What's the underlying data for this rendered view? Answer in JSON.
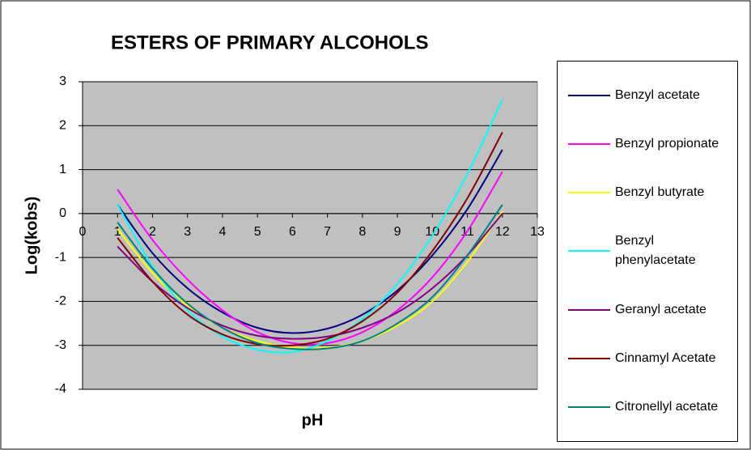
{
  "chart_data": {
    "type": "line",
    "title": "ESTERS OF PRIMARY ALCOHOLS",
    "x_label": "pH",
    "y_label": "Log(kobs)",
    "x": [
      1,
      2,
      3,
      4,
      5,
      6,
      7,
      8,
      9,
      10,
      11,
      12
    ],
    "xlim": [
      0,
      13
    ],
    "xticks": [
      0,
      1,
      2,
      3,
      4,
      5,
      6,
      7,
      8,
      9,
      10,
      11,
      12,
      13
    ],
    "ylim": [
      -4,
      3
    ],
    "yticks": [
      -4,
      -3,
      -2,
      -1,
      0,
      1,
      2,
      3
    ],
    "grid": true,
    "legend": "right",
    "series": [
      {
        "name": "Benzyl acetate",
        "color": "#000080",
        "values": [
          0.2,
          -0.9,
          -1.7,
          -2.25,
          -2.6,
          -2.72,
          -2.62,
          -2.3,
          -1.75,
          -0.95,
          0.1,
          1.45
        ]
      },
      {
        "name": "Benzyl propionate",
        "color": "#ff00ff",
        "values": [
          0.55,
          -0.6,
          -1.5,
          -2.2,
          -2.7,
          -2.95,
          -2.95,
          -2.7,
          -2.2,
          -1.45,
          -0.4,
          0.95
        ]
      },
      {
        "name": "Benzyl butyrate",
        "color": "#ffff00",
        "values": [
          -0.35,
          -1.35,
          -2.1,
          -2.6,
          -2.9,
          -3.05,
          -3.05,
          -2.9,
          -2.55,
          -2.0,
          -1.1,
          0.05
        ]
      },
      {
        "name": "Benzyl phenylacetate",
        "color": "#00ffff",
        "values": [
          0.2,
          -1.2,
          -2.2,
          -2.8,
          -3.1,
          -3.15,
          -2.9,
          -2.4,
          -1.6,
          -0.5,
          0.9,
          2.6
        ]
      },
      {
        "name": "Geranyl acetate",
        "color": "#800080",
        "values": [
          -0.75,
          -1.55,
          -2.15,
          -2.55,
          -2.78,
          -2.85,
          -2.8,
          -2.6,
          -2.25,
          -1.7,
          -0.95,
          0.0
        ]
      },
      {
        "name": "Cinnamyl Acetate",
        "color": "#800000",
        "values": [
          -0.55,
          -1.55,
          -2.3,
          -2.75,
          -2.97,
          -3.0,
          -2.85,
          -2.45,
          -1.8,
          -0.85,
          0.35,
          1.85
        ]
      },
      {
        "name": "Citronellyl acetate",
        "color": "#008080",
        "values": [
          -0.2,
          -1.25,
          -2.05,
          -2.6,
          -2.95,
          -3.08,
          -3.07,
          -2.9,
          -2.5,
          -1.9,
          -0.95,
          0.2
        ]
      }
    ]
  }
}
